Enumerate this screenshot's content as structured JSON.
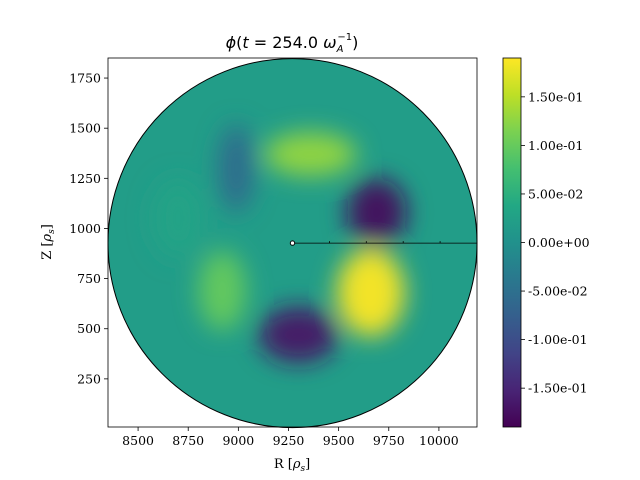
{
  "chart_data": {
    "type": "heatmap",
    "title_parts": {
      "quantity": "ϕ",
      "open": "(",
      "variable": "t",
      "equals": " = ",
      "value": "254.0",
      "unit_symbol": "ω",
      "unit_subscript": "A",
      "unit_superscript": "−1",
      "close": ")"
    },
    "xlabel": "R [ρs]",
    "xlabel_parts": {
      "base": "R [",
      "symbol": "ρ",
      "subscript": "s",
      "close": "]"
    },
    "ylabel": "Z [ρs]",
    "ylabel_parts": {
      "base": "Z [",
      "symbol": "ρ",
      "subscript": "s",
      "close": "]"
    },
    "xlim": [
      8350,
      10190
    ],
    "ylim": [
      10,
      1850
    ],
    "x_ticks": [
      8500,
      8750,
      9000,
      9250,
      9500,
      9750,
      10000
    ],
    "x_tick_labels": [
      "8500",
      "8750",
      "9000",
      "9250",
      "9500",
      "9750",
      "10000"
    ],
    "y_ticks": [
      250,
      500,
      750,
      1000,
      1250,
      1500,
      1750
    ],
    "y_tick_labels": [
      "250",
      "500",
      "750",
      "1000",
      "1250",
      "1500",
      "1750"
    ],
    "domain": {
      "shape": "circle",
      "center": [
        9270,
        927
      ],
      "radius": 920
    },
    "reference_point": [
      9270,
      927
    ],
    "reference_line": {
      "from": [
        9270,
        927
      ],
      "to": [
        10190,
        927
      ]
    },
    "colormap": "viridis",
    "colorbar": {
      "range": [
        -0.19,
        0.19
      ],
      "ticks": [
        -0.15,
        -0.1,
        -0.05,
        0.0,
        0.05,
        0.1,
        0.15
      ],
      "tick_labels": [
        "-1.50e-01",
        "-1.00e-01",
        "-5.00e-02",
        "0.00e+00",
        "5.00e-02",
        "1.00e-01",
        "1.50e-01"
      ]
    },
    "field_features": [
      {
        "x": 9360,
        "y": 1370,
        "value": 0.13
      },
      {
        "x": 9660,
        "y": 680,
        "value": 0.19
      },
      {
        "x": 8920,
        "y": 690,
        "value": 0.1
      },
      {
        "x": 9690,
        "y": 1080,
        "value": -0.18
      },
      {
        "x": 9300,
        "y": 470,
        "value": -0.17
      },
      {
        "x": 8990,
        "y": 1300,
        "value": -0.06
      },
      {
        "x": 8700,
        "y": 1050,
        "value": 0.03
      }
    ],
    "background_value": 0.02
  }
}
